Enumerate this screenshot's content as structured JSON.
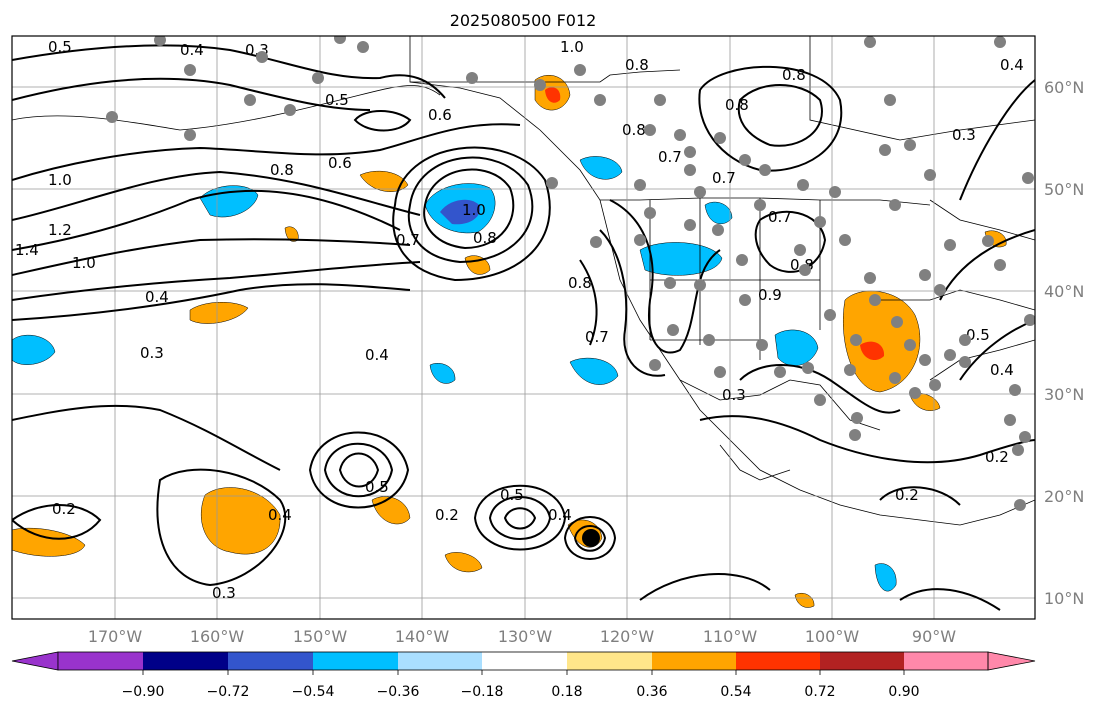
{
  "title": "2025080500 F012",
  "longitude_labels": [
    "170°W",
    "160°W",
    "150°W",
    "140°W",
    "130°W",
    "120°W",
    "110°W",
    "100°W",
    "90°W"
  ],
  "latitude_labels": [
    "60°N",
    "50°N",
    "40°N",
    "30°N",
    "20°N",
    "10°N"
  ],
  "colorbar": {
    "ticks": [
      "−0.90",
      "−0.72",
      "−0.54",
      "−0.36",
      "−0.18",
      "0.18",
      "0.36",
      "0.54",
      "0.72",
      "0.90"
    ],
    "colors": [
      "#9933cc",
      "#000088",
      "#3355cc",
      "#00bfff",
      "#aadfff",
      "#ffffff",
      "#ffe68a",
      "#ffa500",
      "#ff3300",
      "#b22222",
      "#ff88aa"
    ]
  },
  "contour_labels": [
    "0.5",
    "0.4",
    "0.3",
    "0.5",
    "0.6",
    "0.8",
    "0.6",
    "1.0",
    "0.7",
    "0.8",
    "1.0",
    "1.2",
    "1.4",
    "1.0",
    "0.4",
    "0.3",
    "0.4",
    "0.2",
    "0.3",
    "0.4",
    "0.5",
    "0.2",
    "0.5",
    "0.4",
    "0.8",
    "0.7",
    "0.8",
    "0.8",
    "0.7",
    "0.9",
    "0.7",
    "0.8",
    "0.3",
    "0.5",
    "0.4",
    "0.2",
    "0.2",
    "0.3",
    "0.7",
    "0.8",
    "0.8",
    "0.4",
    "1.0"
  ],
  "markers": {
    "station_color": "#808080",
    "storm_center_color": "#000000"
  }
}
